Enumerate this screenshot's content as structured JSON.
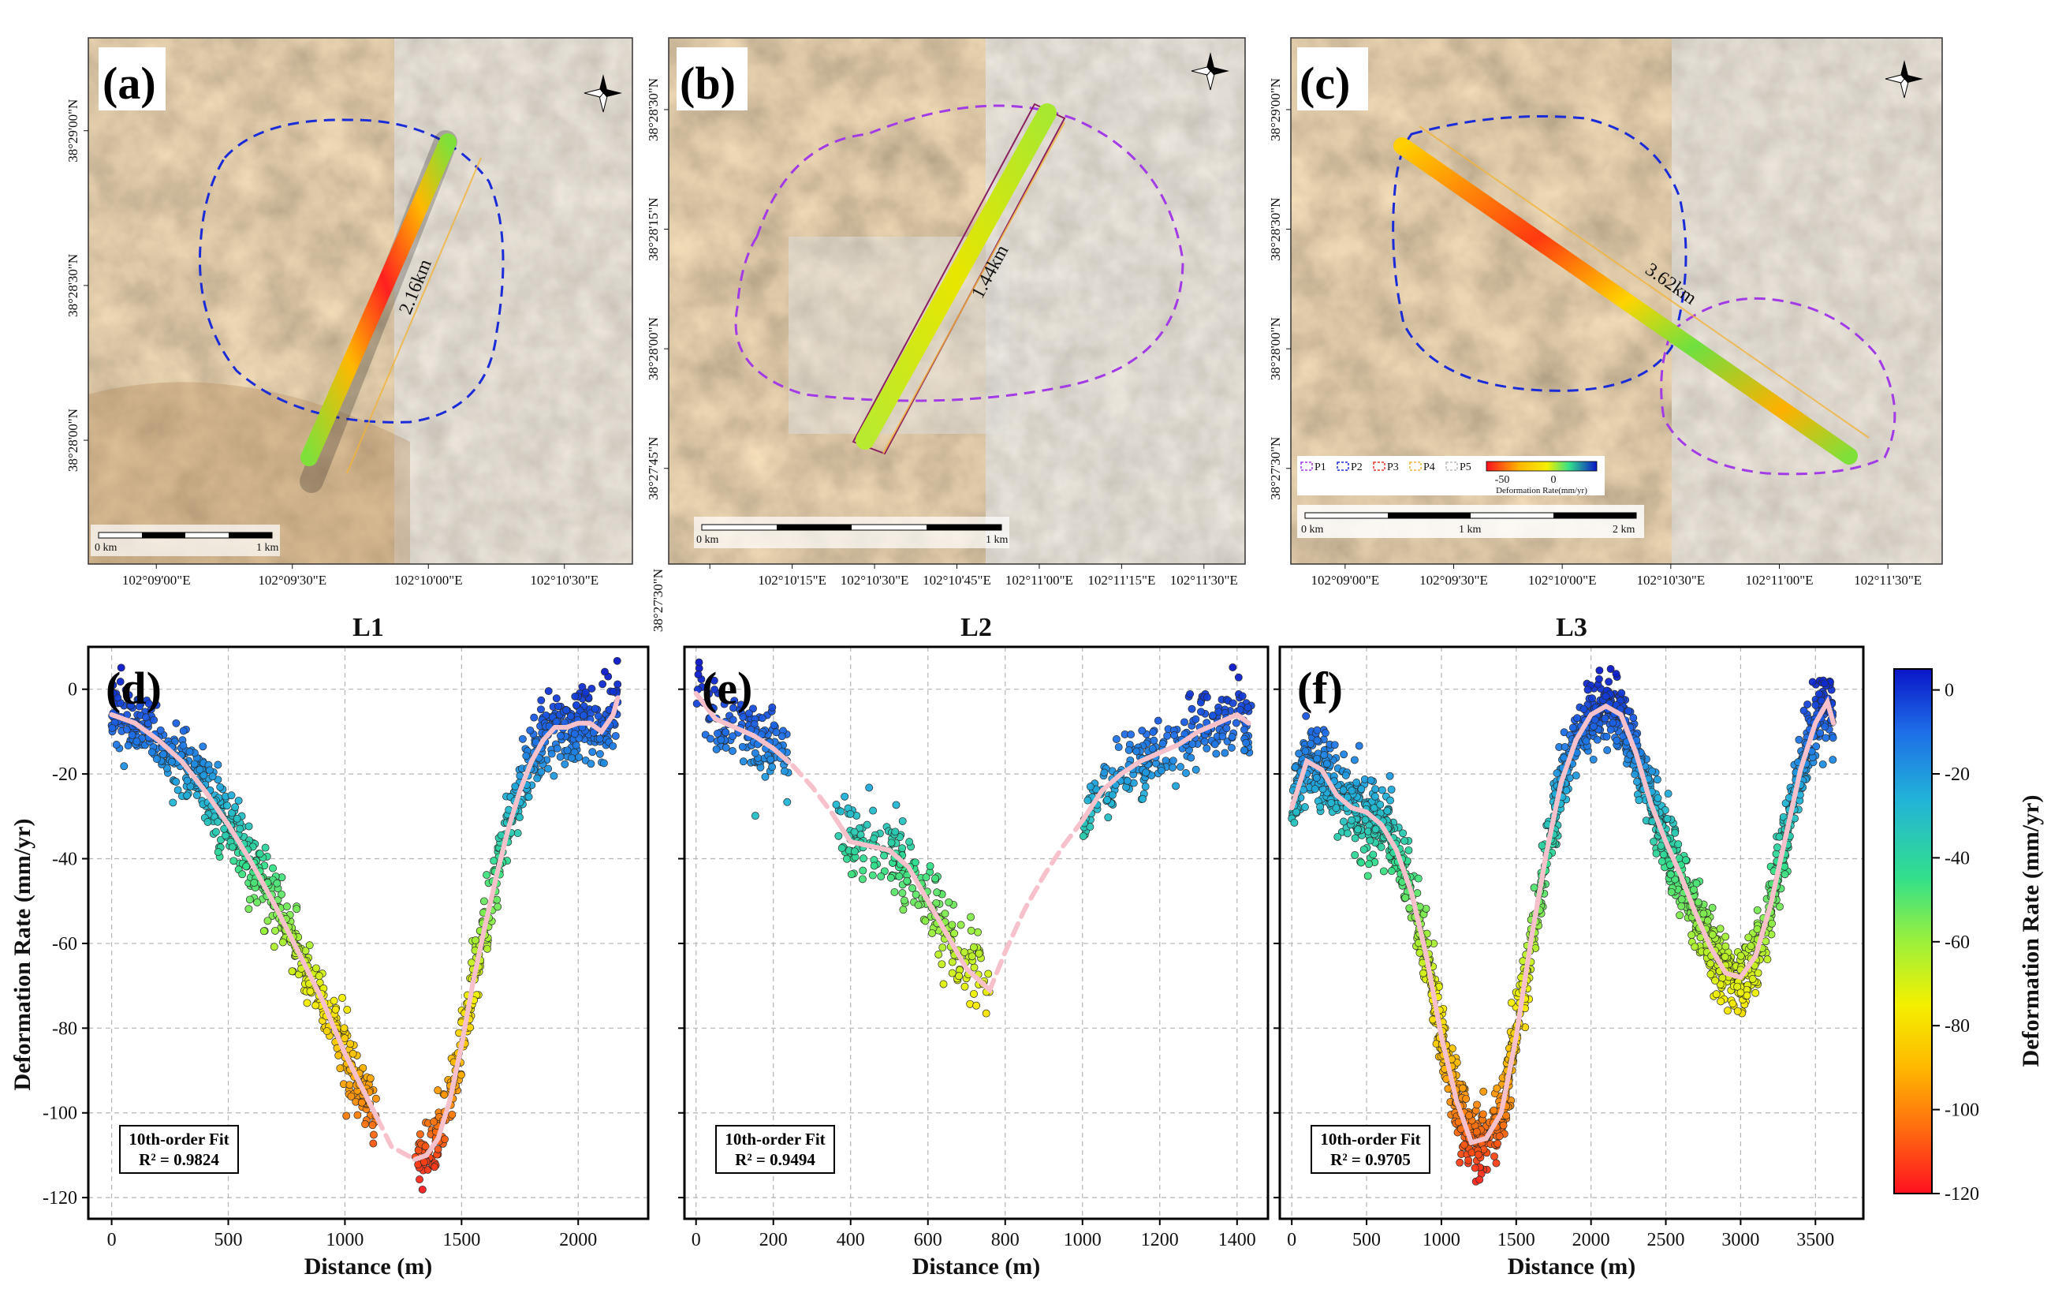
{
  "maps": [
    {
      "label": "(a)",
      "x_ticks": [
        "102°09'00\"E",
        "102°09'30\"E",
        "102°10'00\"E",
        "102°10'30\"E"
      ],
      "y_ticks": [
        "38°29'00\"N",
        "38°28'30\"N",
        "38°28'00\"N"
      ],
      "profile_length": "2.16km",
      "scalebar": {
        "start": "0 km",
        "end": "1 km"
      }
    },
    {
      "label": "(b)",
      "x_ticks": [
        "38°27'30\"N",
        "102°10'15\"E",
        "102°10'30\"E",
        "102°10'45\"E",
        "102°11'00\"E",
        "102°11'15\"E",
        "102°11'30\"E"
      ],
      "y_ticks": [
        "38°28'30\"N",
        "38°28'15\"N",
        "38°28'00\"N",
        "38°27'45\"N"
      ],
      "profile_length": "1.44km",
      "scalebar": {
        "start": "0 km",
        "end": "1 km"
      }
    },
    {
      "label": "(c)",
      "x_ticks": [
        "102°09'00\"E",
        "102°09'30\"E",
        "102°10'00\"E",
        "102°10'30\"E",
        "102°11'00\"E",
        "102°11'30\"E"
      ],
      "y_ticks": [
        "38°29'00\"N",
        "38°28'30\"N",
        "38°28'00\"N",
        "38°27'30\"N"
      ],
      "profile_length": "3.62km",
      "scalebar": {
        "start": "0 km",
        "mid": "1 km",
        "end": "2 km"
      },
      "legend": {
        "items": [
          "P1",
          "P2",
          "P3",
          "P4",
          "P5"
        ],
        "colorbar_ticks": [
          "-50",
          "0"
        ],
        "colorbar_label": "Deformation Rate(mm/yr)"
      }
    }
  ],
  "chart_data": [
    {
      "type": "scatter",
      "panel": "(d)",
      "title": "L1",
      "xlabel": "Distance (m)",
      "ylabel": "Deformation Rate (mm/yr)",
      "xlim": [
        -100,
        2300
      ],
      "ylim": [
        -125,
        10
      ],
      "xticks": [
        0,
        500,
        1000,
        1500,
        2000
      ],
      "yticks": [
        0,
        -20,
        -40,
        -60,
        -80,
        -100,
        -120
      ],
      "grid": true,
      "segments": [
        [
          0,
          1140
        ],
        [
          1300,
          2170
        ]
      ],
      "fit": {
        "label": "10th-order Fit",
        "r2": "R² = 0.9824",
        "x": [
          0,
          100,
          200,
          300,
          400,
          500,
          600,
          700,
          800,
          900,
          1000,
          1100,
          1200,
          1300,
          1350,
          1400,
          1450,
          1500,
          1550,
          1600,
          1650,
          1700,
          1750,
          1800,
          1850,
          1900,
          1950,
          2000,
          2050,
          2100,
          2150,
          2170
        ],
        "y": [
          -6,
          -8,
          -12,
          -17,
          -24,
          -32,
          -41,
          -51,
          -62,
          -73,
          -86,
          -97,
          -108,
          -111,
          -110,
          -106,
          -97,
          -84,
          -69,
          -56,
          -44,
          -33,
          -24,
          -17,
          -12,
          -9,
          -9,
          -8,
          -8,
          -10,
          -6,
          -2
        ]
      },
      "points_note": "dense scatter cloud around fit"
    },
    {
      "type": "scatter",
      "panel": "(e)",
      "title": "L2",
      "xlabel": "Distance (m)",
      "ylabel": "",
      "xlim": [
        -30,
        1480
      ],
      "ylim": [
        -125,
        10
      ],
      "xticks": [
        0,
        200,
        400,
        600,
        800,
        1000,
        1200,
        1400
      ],
      "yticks": [],
      "grid": true,
      "segments": [
        [
          0,
          240
        ],
        [
          360,
          760
        ],
        [
          1000,
          1440
        ]
      ],
      "fit": {
        "label": "10th-order Fit",
        "r2": "R² = 0.9494",
        "x": [
          0,
          50,
          100,
          150,
          200,
          250,
          300,
          350,
          400,
          450,
          500,
          550,
          600,
          650,
          700,
          760,
          800,
          850,
          900,
          950,
          1000,
          1050,
          1100,
          1150,
          1200,
          1250,
          1300,
          1350,
          1400,
          1430
        ],
        "y": [
          -1,
          -7,
          -9,
          -11,
          -14,
          -18,
          -23,
          -29,
          -36,
          -37,
          -38,
          -42,
          -50,
          -58,
          -66,
          -71,
          -62,
          -52,
          -44,
          -37,
          -31,
          -24,
          -20,
          -17,
          -15,
          -13,
          -10,
          -8,
          -6,
          -8
        ]
      },
      "points_note": "dense scatter cloud around fit"
    },
    {
      "type": "scatter",
      "panel": "(f)",
      "title": "L3",
      "xlabel": "Distance (m)",
      "ylabel": "",
      "xlim": [
        -80,
        3820
      ],
      "ylim": [
        -125,
        10
      ],
      "xticks": [
        0,
        500,
        1000,
        1500,
        2000,
        2500,
        3000,
        3500
      ],
      "yticks": [],
      "grid": true,
      "segments": [
        [
          0,
          3620
        ]
      ],
      "fit": {
        "label": "10th-order Fit",
        "r2": "R² = 0.9705",
        "x": [
          0,
          100,
          200,
          300,
          400,
          500,
          600,
          700,
          800,
          900,
          1000,
          1100,
          1200,
          1300,
          1400,
          1500,
          1600,
          1700,
          1800,
          1900,
          2000,
          2100,
          2200,
          2300,
          2400,
          2500,
          2600,
          2700,
          2800,
          2900,
          3000,
          3100,
          3200,
          3300,
          3400,
          3500,
          3580,
          3620
        ],
        "y": [
          -28,
          -17,
          -19,
          -25,
          -28,
          -29,
          -32,
          -38,
          -48,
          -63,
          -82,
          -97,
          -107,
          -106,
          -100,
          -82,
          -59,
          -39,
          -22,
          -12,
          -6,
          -4,
          -6,
          -15,
          -27,
          -36,
          -44,
          -53,
          -61,
          -67,
          -68,
          -63,
          -51,
          -35,
          -19,
          -8,
          -3,
          -8
        ]
      },
      "points_note": "dense scatter cloud around fit"
    }
  ],
  "colorbar": {
    "label": "Deformation Rate (mm/yr)",
    "ticks": [
      0,
      -20,
      -40,
      -60,
      -80,
      -100,
      -120
    ],
    "range": [
      5,
      -120
    ],
    "colors": [
      "#0a16c8",
      "#1e6ee8",
      "#22b4d8",
      "#33e08a",
      "#9cf03a",
      "#f4f000",
      "#ffb800",
      "#ff6a10",
      "#ff1020"
    ]
  },
  "colors": {
    "fit_line": "#f7c1cc",
    "map_blue_boundary": "#1a2bd8",
    "map_purple_boundary": "#a23ae6",
    "profile_outline": "#f2b43a"
  }
}
